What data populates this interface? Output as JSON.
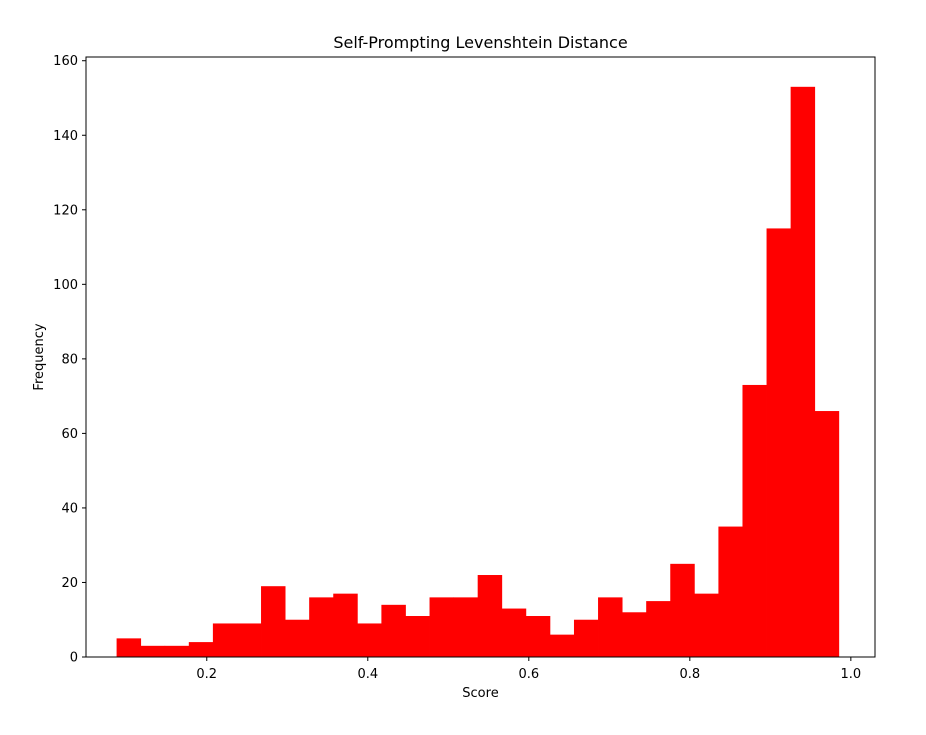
{
  "chart_data": {
    "type": "bar",
    "title": "Self-Prompting Levenshtein Distance",
    "xlabel": "Score",
    "ylabel": "Frequency",
    "xlim": [
      0.05,
      1.03
    ],
    "ylim": [
      0,
      161
    ],
    "bar_color": "#ff0000",
    "bin_start": 0.088,
    "bin_width": 0.0299,
    "values": [
      5,
      3,
      3,
      4,
      9,
      9,
      19,
      10,
      16,
      17,
      9,
      14,
      11,
      16,
      16,
      22,
      13,
      11,
      6,
      10,
      16,
      12,
      15,
      25,
      17,
      35,
      73,
      115,
      153,
      66
    ],
    "xticks": [
      0.2,
      0.4,
      0.6,
      0.8,
      1.0
    ],
    "xtick_labels": [
      "0.2",
      "0.4",
      "0.6",
      "0.8",
      "1.0"
    ],
    "yticks": [
      0,
      20,
      40,
      60,
      80,
      100,
      120,
      140,
      160
    ],
    "ytick_labels": [
      "0",
      "20",
      "40",
      "60",
      "80",
      "100",
      "120",
      "140",
      "160"
    ]
  }
}
